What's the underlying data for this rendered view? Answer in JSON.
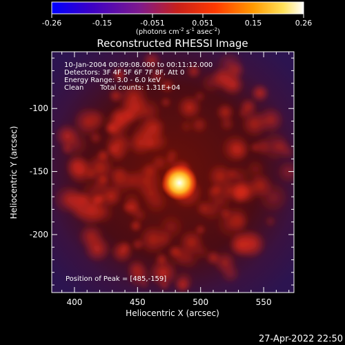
{
  "colorbar": {
    "ticks": [
      "-0.26",
      "-0.15",
      "-0.051",
      "0.051",
      "0.15",
      "0.26"
    ],
    "units": "(photons cm",
    "units_exp1": "-2",
    "units_mid": " s",
    "units_exp2": "-1",
    "units_mid2": " asec",
    "units_exp3": "-2",
    "units_end": ")",
    "colors": [
      "#0000ff",
      "#3a00c8",
      "#7f1a8c",
      "#c8201a",
      "#ff3a00",
      "#ff9a00",
      "#ffe25a",
      "#ffffff"
    ]
  },
  "image": {
    "title": "Reconstructed RHESSI Image",
    "time_range": "10-Jan-2004 00:09:08.000 to 00:11:12.000",
    "detectors": "Detectors: 3F 4F 5F 6F 7F 8F, Att 0",
    "energy": "Energy Range: 3.0 - 6.0 keV",
    "clean_label": "Clean",
    "total_counts": "Total counts: 1.31E+04",
    "peak": "Position of Peak = [485,-159]"
  },
  "axes": {
    "xlabel": "Heliocentric X (arcsec)",
    "ylabel": "Heliocentric Y (arcsec)",
    "xticks": [
      400,
      450,
      500,
      550
    ],
    "yticks": [
      -100,
      -150,
      -200
    ],
    "xlim": [
      382,
      574
    ],
    "ylim": [
      -246,
      -55
    ]
  },
  "footer": {
    "date": "27-Apr-2022 22:50"
  }
}
